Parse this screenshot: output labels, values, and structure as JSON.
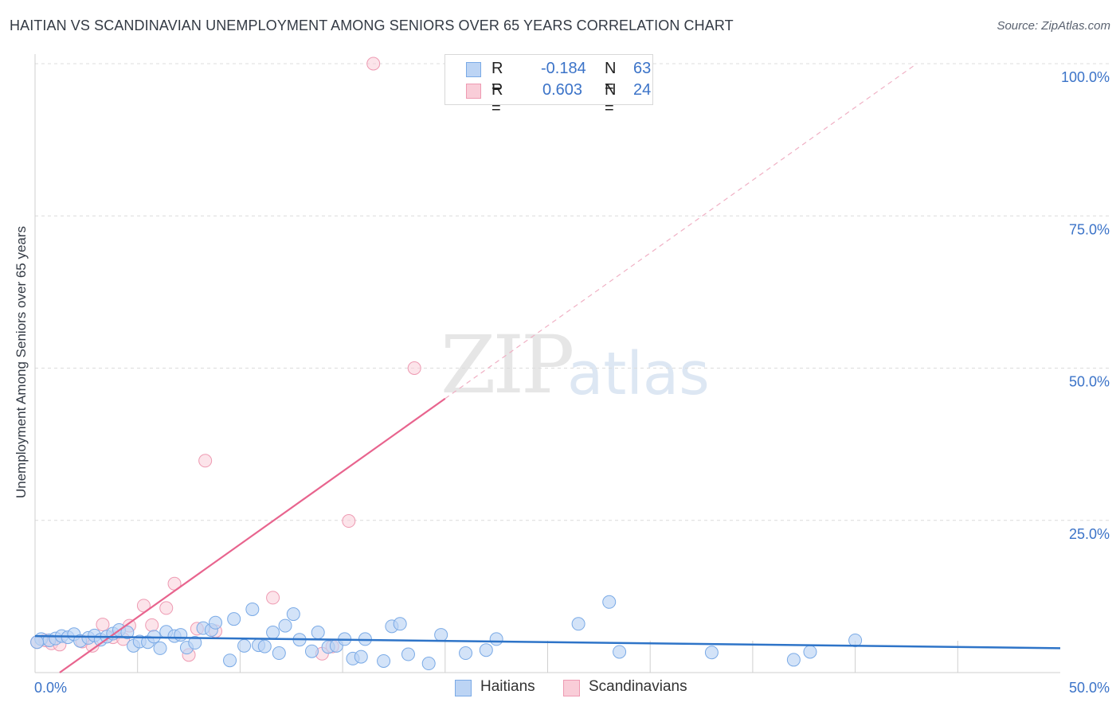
{
  "title": "HAITIAN VS SCANDINAVIAN UNEMPLOYMENT AMONG SENIORS OVER 65 YEARS CORRELATION CHART",
  "source": "Source: ZipAtlas.com",
  "watermark": {
    "zip": "ZIP",
    "atlas": "atlas"
  },
  "legend_top": {
    "rows": [
      {
        "r_label": "R =",
        "r_value": "-0.184",
        "n_label": "N =",
        "n_value": "63"
      },
      {
        "r_label": "R =",
        "r_value": "0.603",
        "n_label": "N =",
        "n_value": "24"
      }
    ]
  },
  "legend_bottom": {
    "items": [
      {
        "label": "Haitians"
      },
      {
        "label": "Scandinavians"
      }
    ]
  },
  "colors": {
    "haitians_fill": "#bcd4f4",
    "haitians_stroke": "#7aaae6",
    "haitians_line": "#2e74c8",
    "scand_fill": "#f9cdd8",
    "scand_stroke": "#ee9ab2",
    "scand_line": "#e8648e",
    "grid": "#dcdcdc",
    "tick_text": "#3b73c8"
  },
  "chart_data": {
    "type": "scatter",
    "title": "HAITIAN VS SCANDINAVIAN UNEMPLOYMENT AMONG SENIORS OVER 65 YEARS CORRELATION CHART",
    "xlabel": "",
    "ylabel": "Unemployment Among Seniors over 65 years",
    "xlim": [
      0,
      50
    ],
    "ylim": [
      0,
      105
    ],
    "x_tick_labels": [
      {
        "value": 0,
        "label": "0.0%"
      },
      {
        "value": 50,
        "label": "50.0%"
      }
    ],
    "y_tick_labels": [
      {
        "value": 25,
        "label": "25.0%"
      },
      {
        "value": 50,
        "label": "50.0%"
      },
      {
        "value": 75,
        "label": "75.0%"
      },
      {
        "value": 100,
        "label": "100.0%"
      }
    ],
    "x_minor_ticks": [
      5,
      10,
      15,
      20,
      25,
      30,
      35,
      40,
      45
    ],
    "series": [
      {
        "name": "Haitians",
        "r": -0.184,
        "n": 63,
        "trend": {
          "x": [
            0,
            50
          ],
          "y": [
            6.0,
            4.0
          ]
        },
        "points": [
          {
            "x": 0.3,
            "y": 5.5
          },
          {
            "x": 0.7,
            "y": 5.3
          },
          {
            "x": 1.0,
            "y": 5.6
          },
          {
            "x": 1.3,
            "y": 6.0
          },
          {
            "x": 1.6,
            "y": 5.8
          },
          {
            "x": 1.9,
            "y": 6.3
          },
          {
            "x": 2.2,
            "y": 5.2
          },
          {
            "x": 2.6,
            "y": 5.7
          },
          {
            "x": 2.9,
            "y": 6.1
          },
          {
            "x": 3.2,
            "y": 5.4
          },
          {
            "x": 3.5,
            "y": 5.9
          },
          {
            "x": 3.8,
            "y": 6.4
          },
          {
            "x": 4.1,
            "y": 7.0
          },
          {
            "x": 4.5,
            "y": 6.6
          },
          {
            "x": 4.8,
            "y": 4.4
          },
          {
            "x": 5.1,
            "y": 5.1
          },
          {
            "x": 5.5,
            "y": 5.0
          },
          {
            "x": 5.8,
            "y": 5.9
          },
          {
            "x": 6.1,
            "y": 4.0
          },
          {
            "x": 6.4,
            "y": 6.7
          },
          {
            "x": 6.8,
            "y": 6.0
          },
          {
            "x": 7.1,
            "y": 6.2
          },
          {
            "x": 7.4,
            "y": 4.1
          },
          {
            "x": 7.8,
            "y": 4.9
          },
          {
            "x": 8.2,
            "y": 7.3
          },
          {
            "x": 8.6,
            "y": 7.0
          },
          {
            "x": 8.8,
            "y": 8.2
          },
          {
            "x": 9.5,
            "y": 2.0
          },
          {
            "x": 9.7,
            "y": 8.8
          },
          {
            "x": 10.2,
            "y": 4.4
          },
          {
            "x": 10.6,
            "y": 10.4
          },
          {
            "x": 10.9,
            "y": 4.5
          },
          {
            "x": 11.2,
            "y": 4.3
          },
          {
            "x": 11.6,
            "y": 6.6
          },
          {
            "x": 11.9,
            "y": 3.2
          },
          {
            "x": 12.2,
            "y": 7.7
          },
          {
            "x": 12.6,
            "y": 9.6
          },
          {
            "x": 12.9,
            "y": 5.4
          },
          {
            "x": 13.5,
            "y": 3.5
          },
          {
            "x": 13.8,
            "y": 6.6
          },
          {
            "x": 14.3,
            "y": 4.2
          },
          {
            "x": 14.7,
            "y": 4.4
          },
          {
            "x": 15.1,
            "y": 5.5
          },
          {
            "x": 15.5,
            "y": 2.3
          },
          {
            "x": 15.9,
            "y": 2.6
          },
          {
            "x": 16.1,
            "y": 5.5
          },
          {
            "x": 17.0,
            "y": 1.9
          },
          {
            "x": 17.4,
            "y": 7.6
          },
          {
            "x": 17.8,
            "y": 8.0
          },
          {
            "x": 18.2,
            "y": 3.0
          },
          {
            "x": 19.2,
            "y": 1.5
          },
          {
            "x": 19.8,
            "y": 6.2
          },
          {
            "x": 21.0,
            "y": 3.2
          },
          {
            "x": 22.0,
            "y": 3.7
          },
          {
            "x": 22.5,
            "y": 5.5
          },
          {
            "x": 26.5,
            "y": 8.0
          },
          {
            "x": 28.0,
            "y": 11.6
          },
          {
            "x": 28.5,
            "y": 3.4
          },
          {
            "x": 33.0,
            "y": 3.3
          },
          {
            "x": 37.0,
            "y": 2.1
          },
          {
            "x": 37.8,
            "y": 3.4
          },
          {
            "x": 40.0,
            "y": 5.3
          },
          {
            "x": 0.1,
            "y": 5.0
          }
        ]
      },
      {
        "name": "Scandinavians",
        "r": 0.603,
        "n": 24,
        "trend": {
          "x": [
            1.2,
            20.0
          ],
          "y": [
            0.0,
            45.0
          ]
        },
        "trend_dashed": {
          "x": [
            20.0,
            43.0
          ],
          "y": [
            45.0,
            100.0
          ]
        },
        "points": [
          {
            "x": 0.1,
            "y": 5.0
          },
          {
            "x": 0.5,
            "y": 5.3
          },
          {
            "x": 0.8,
            "y": 4.8
          },
          {
            "x": 1.2,
            "y": 4.6
          },
          {
            "x": 2.3,
            "y": 5.1
          },
          {
            "x": 2.8,
            "y": 4.4
          },
          {
            "x": 3.3,
            "y": 7.9
          },
          {
            "x": 3.8,
            "y": 5.8
          },
          {
            "x": 4.3,
            "y": 5.5
          },
          {
            "x": 4.6,
            "y": 7.7
          },
          {
            "x": 5.3,
            "y": 11.0
          },
          {
            "x": 5.7,
            "y": 7.8
          },
          {
            "x": 6.4,
            "y": 10.6
          },
          {
            "x": 6.8,
            "y": 14.6
          },
          {
            "x": 7.5,
            "y": 2.9
          },
          {
            "x": 7.9,
            "y": 7.2
          },
          {
            "x": 8.3,
            "y": 34.8
          },
          {
            "x": 8.8,
            "y": 6.8
          },
          {
            "x": 11.6,
            "y": 12.3
          },
          {
            "x": 14.0,
            "y": 3.1
          },
          {
            "x": 14.5,
            "y": 4.3
          },
          {
            "x": 15.3,
            "y": 24.9
          },
          {
            "x": 16.5,
            "y": 100.0
          },
          {
            "x": 18.5,
            "y": 50.0
          }
        ]
      }
    ]
  }
}
